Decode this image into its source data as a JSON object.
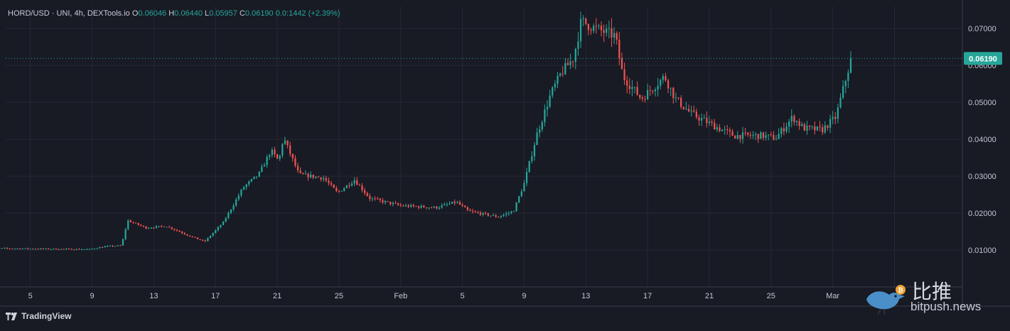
{
  "legend": {
    "pair": "HORD/USD · UNI, 4h, DEXTools.io",
    "o_key": "O",
    "o_val": "0.06046",
    "h_key": "H",
    "h_val": "0.06440",
    "l_key": "L",
    "l_val": "0.05957",
    "c_key": "C",
    "c_val": "0.06190",
    "change": "0.0:1442 (+2.39%)"
  },
  "brand": "TradingView",
  "watermark": {
    "name": "比推",
    "site": "bitpush.news"
  },
  "colors": {
    "bg": "#181a24",
    "up": "#26a69a",
    "down": "#ef5350",
    "grid": "#262936",
    "axis_text": "#c3c6d0",
    "price_line": "#26a69a"
  },
  "chart_data": {
    "type": "candlestick",
    "title": "",
    "pair": "HORD/USD",
    "exchange": "UNI",
    "interval": "4h",
    "last_price": 0.0619,
    "last_price_label": "0.06190",
    "ylim": [
      0.0,
      0.076
    ],
    "y_ticks": [
      0.01,
      0.02,
      0.03,
      0.04,
      0.05,
      0.06,
      0.07
    ],
    "y_tick_labels": [
      "0.01000",
      "0.02000",
      "0.03000",
      "0.04000",
      "0.05000",
      "0.06000",
      "0.07000"
    ],
    "x_ticks": [
      5,
      9,
      13,
      17,
      21,
      25,
      29,
      33,
      37,
      41,
      45,
      49,
      53,
      57,
      61
    ],
    "x_tick_labels": [
      "5",
      "9",
      "13",
      "17",
      "21",
      "25",
      "Feb",
      "5",
      "9",
      "13",
      "17",
      "21",
      "25",
      "Mar",
      "5"
    ],
    "x_unit": "day index from Jan 1",
    "anchors": [
      [
        2.0,
        0.0105
      ],
      [
        8.8,
        0.0102
      ],
      [
        9.9,
        0.011
      ],
      [
        10.9,
        0.0112
      ],
      [
        11.3,
        0.018
      ],
      [
        12.5,
        0.016
      ],
      [
        13.8,
        0.0165
      ],
      [
        15.5,
        0.0135
      ],
      [
        16.3,
        0.0123
      ],
      [
        17.5,
        0.0175
      ],
      [
        18.8,
        0.027
      ],
      [
        19.8,
        0.0305
      ],
      [
        20.6,
        0.037
      ],
      [
        21.1,
        0.034
      ],
      [
        21.4,
        0.0405
      ],
      [
        22.4,
        0.0305
      ],
      [
        24.0,
        0.0295
      ],
      [
        24.9,
        0.0255
      ],
      [
        26.0,
        0.029
      ],
      [
        27.0,
        0.024
      ],
      [
        29.0,
        0.022
      ],
      [
        31.3,
        0.0215
      ],
      [
        32.6,
        0.023
      ],
      [
        33.4,
        0.0205
      ],
      [
        35.3,
        0.019
      ],
      [
        36.3,
        0.0205
      ],
      [
        37.0,
        0.028
      ],
      [
        37.8,
        0.041
      ],
      [
        38.7,
        0.052
      ],
      [
        39.4,
        0.058
      ],
      [
        40.2,
        0.062
      ],
      [
        40.7,
        0.072
      ],
      [
        41.6,
        0.07
      ],
      [
        42.9,
        0.068
      ],
      [
        43.4,
        0.057
      ],
      [
        44.6,
        0.051
      ],
      [
        46.1,
        0.057
      ],
      [
        46.8,
        0.051
      ],
      [
        47.8,
        0.047
      ],
      [
        49.6,
        0.043
      ],
      [
        50.6,
        0.041
      ],
      [
        52.4,
        0.041
      ],
      [
        53.3,
        0.0403
      ],
      [
        54.4,
        0.046
      ],
      [
        55.1,
        0.043
      ],
      [
        56.3,
        0.0425
      ],
      [
        57.2,
        0.046
      ],
      [
        57.7,
        0.054
      ],
      [
        58.2,
        0.062
      ]
    ]
  }
}
